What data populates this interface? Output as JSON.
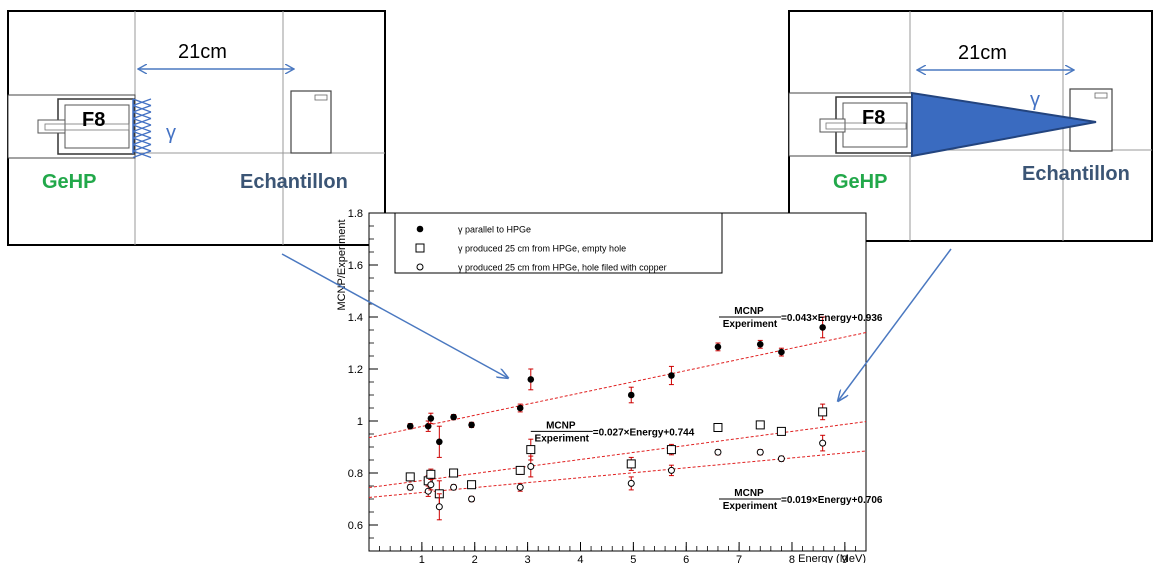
{
  "diagram_left": {
    "distance_label": "21cm",
    "detector_label": "F8",
    "gamma_label": "γ",
    "detector_name": "GeHP",
    "sample_name": "Echantillon",
    "hatch_color": "#4472c4"
  },
  "diagram_right": {
    "distance_label": "21cm",
    "detector_label": "F8",
    "gamma_label": "γ",
    "detector_name": "GeHP",
    "sample_name": "Echantillon",
    "cone_color": "#2e63b5"
  },
  "colors": {
    "label_green": "#22a84a",
    "label_blue": "#3b5575",
    "arrow": "#4a78c0",
    "fit": "#e02020",
    "error": "#cc0000"
  },
  "chart_data": {
    "type": "scatter",
    "title": "",
    "xlabel": "Energy (MeV)",
    "ylabel": "MCNP/Experiment",
    "xlim": [
      0,
      9.4
    ],
    "ylim": [
      0.5,
      1.8
    ],
    "xticks": [
      1,
      2,
      3,
      4,
      5,
      6,
      7,
      8,
      9
    ],
    "yticks": [
      0.6,
      0.8,
      1,
      1.2,
      1.4,
      1.6,
      1.8
    ],
    "ytick_labels": [
      "0.6",
      "0.8",
      "1",
      "1.2",
      "1.4",
      "1.6",
      "1.8"
    ],
    "grid": false,
    "legend_position": "top-left",
    "series": [
      {
        "name": "γ parallel to HPGe",
        "marker": "filled-circle",
        "points": [
          {
            "x": 0.78,
            "y": 0.98,
            "err": 0.01
          },
          {
            "x": 1.12,
            "y": 0.98,
            "err": 0.02
          },
          {
            "x": 1.17,
            "y": 1.01,
            "err": 0.02
          },
          {
            "x": 1.33,
            "y": 0.92,
            "err": 0.06
          },
          {
            "x": 1.6,
            "y": 1.015,
            "err": 0.01
          },
          {
            "x": 1.94,
            "y": 0.985,
            "err": 0.01
          },
          {
            "x": 2.86,
            "y": 1.05,
            "err": 0.015
          },
          {
            "x": 3.06,
            "y": 1.16,
            "err": 0.04
          },
          {
            "x": 4.96,
            "y": 1.1,
            "err": 0.03
          },
          {
            "x": 5.72,
            "y": 1.175,
            "err": 0.035
          },
          {
            "x": 6.6,
            "y": 1.285,
            "err": 0.015
          },
          {
            "x": 7.4,
            "y": 1.295,
            "err": 0.015
          },
          {
            "x": 7.8,
            "y": 1.265,
            "err": 0.015
          },
          {
            "x": 8.58,
            "y": 1.36,
            "err": 0.04
          }
        ],
        "fit": {
          "slope": 0.043,
          "intercept": 0.936,
          "label_num": "MCNP",
          "label_den": "Experiment",
          "label_rest": "=0.043×Energy+0.936",
          "label_x": 6.62,
          "label_y": 1.4
        }
      },
      {
        "name": "γ produced 25 cm from HPGe, empty hole",
        "marker": "open-square",
        "points": [
          {
            "x": 0.78,
            "y": 0.785,
            "err": 0.01
          },
          {
            "x": 1.12,
            "y": 0.77,
            "err": 0.02
          },
          {
            "x": 1.17,
            "y": 0.795,
            "err": 0.02
          },
          {
            "x": 1.33,
            "y": 0.72,
            "err": 0.05
          },
          {
            "x": 1.6,
            "y": 0.8,
            "err": 0.01
          },
          {
            "x": 1.94,
            "y": 0.755,
            "err": 0.01
          },
          {
            "x": 2.86,
            "y": 0.81,
            "err": 0.015
          },
          {
            "x": 3.06,
            "y": 0.89,
            "err": 0.04
          },
          {
            "x": 4.96,
            "y": 0.835,
            "err": 0.025
          },
          {
            "x": 5.72,
            "y": 0.89,
            "err": 0.02
          },
          {
            "x": 6.6,
            "y": 0.975,
            "err": 0.01
          },
          {
            "x": 7.4,
            "y": 0.985,
            "err": 0.01
          },
          {
            "x": 7.8,
            "y": 0.96,
            "err": 0.01
          },
          {
            "x": 8.58,
            "y": 1.035,
            "err": 0.03
          }
        ],
        "fit": {
          "slope": 0.027,
          "intercept": 0.744,
          "label_num": "MCNP",
          "label_den": "Experiment",
          "label_rest": "=0.027×Energy+0.744",
          "label_x": 3.06,
          "label_y": 0.96
        }
      },
      {
        "name": "γ produced 25 cm from HPGe, hole filed with copper",
        "marker": "open-circle",
        "points": [
          {
            "x": 0.78,
            "y": 0.745,
            "err": 0.01
          },
          {
            "x": 1.12,
            "y": 0.73,
            "err": 0.02
          },
          {
            "x": 1.17,
            "y": 0.755,
            "err": 0.02
          },
          {
            "x": 1.33,
            "y": 0.67,
            "err": 0.05
          },
          {
            "x": 1.6,
            "y": 0.745,
            "err": 0.01
          },
          {
            "x": 1.94,
            "y": 0.7,
            "err": 0.01
          },
          {
            "x": 2.86,
            "y": 0.745,
            "err": 0.015
          },
          {
            "x": 3.06,
            "y": 0.825,
            "err": 0.04
          },
          {
            "x": 4.96,
            "y": 0.76,
            "err": 0.025
          },
          {
            "x": 5.72,
            "y": 0.81,
            "err": 0.02
          },
          {
            "x": 6.6,
            "y": 0.88,
            "err": 0.01
          },
          {
            "x": 7.4,
            "y": 0.88,
            "err": 0.01
          },
          {
            "x": 7.8,
            "y": 0.855,
            "err": 0.01
          },
          {
            "x": 8.58,
            "y": 0.915,
            "err": 0.03
          }
        ],
        "fit": {
          "slope": 0.019,
          "intercept": 0.706,
          "label_num": "MCNP",
          "label_den": "Experiment",
          "label_rest": "=0.019×Energy+0.706",
          "label_x": 6.62,
          "label_y": 0.7
        }
      }
    ]
  }
}
